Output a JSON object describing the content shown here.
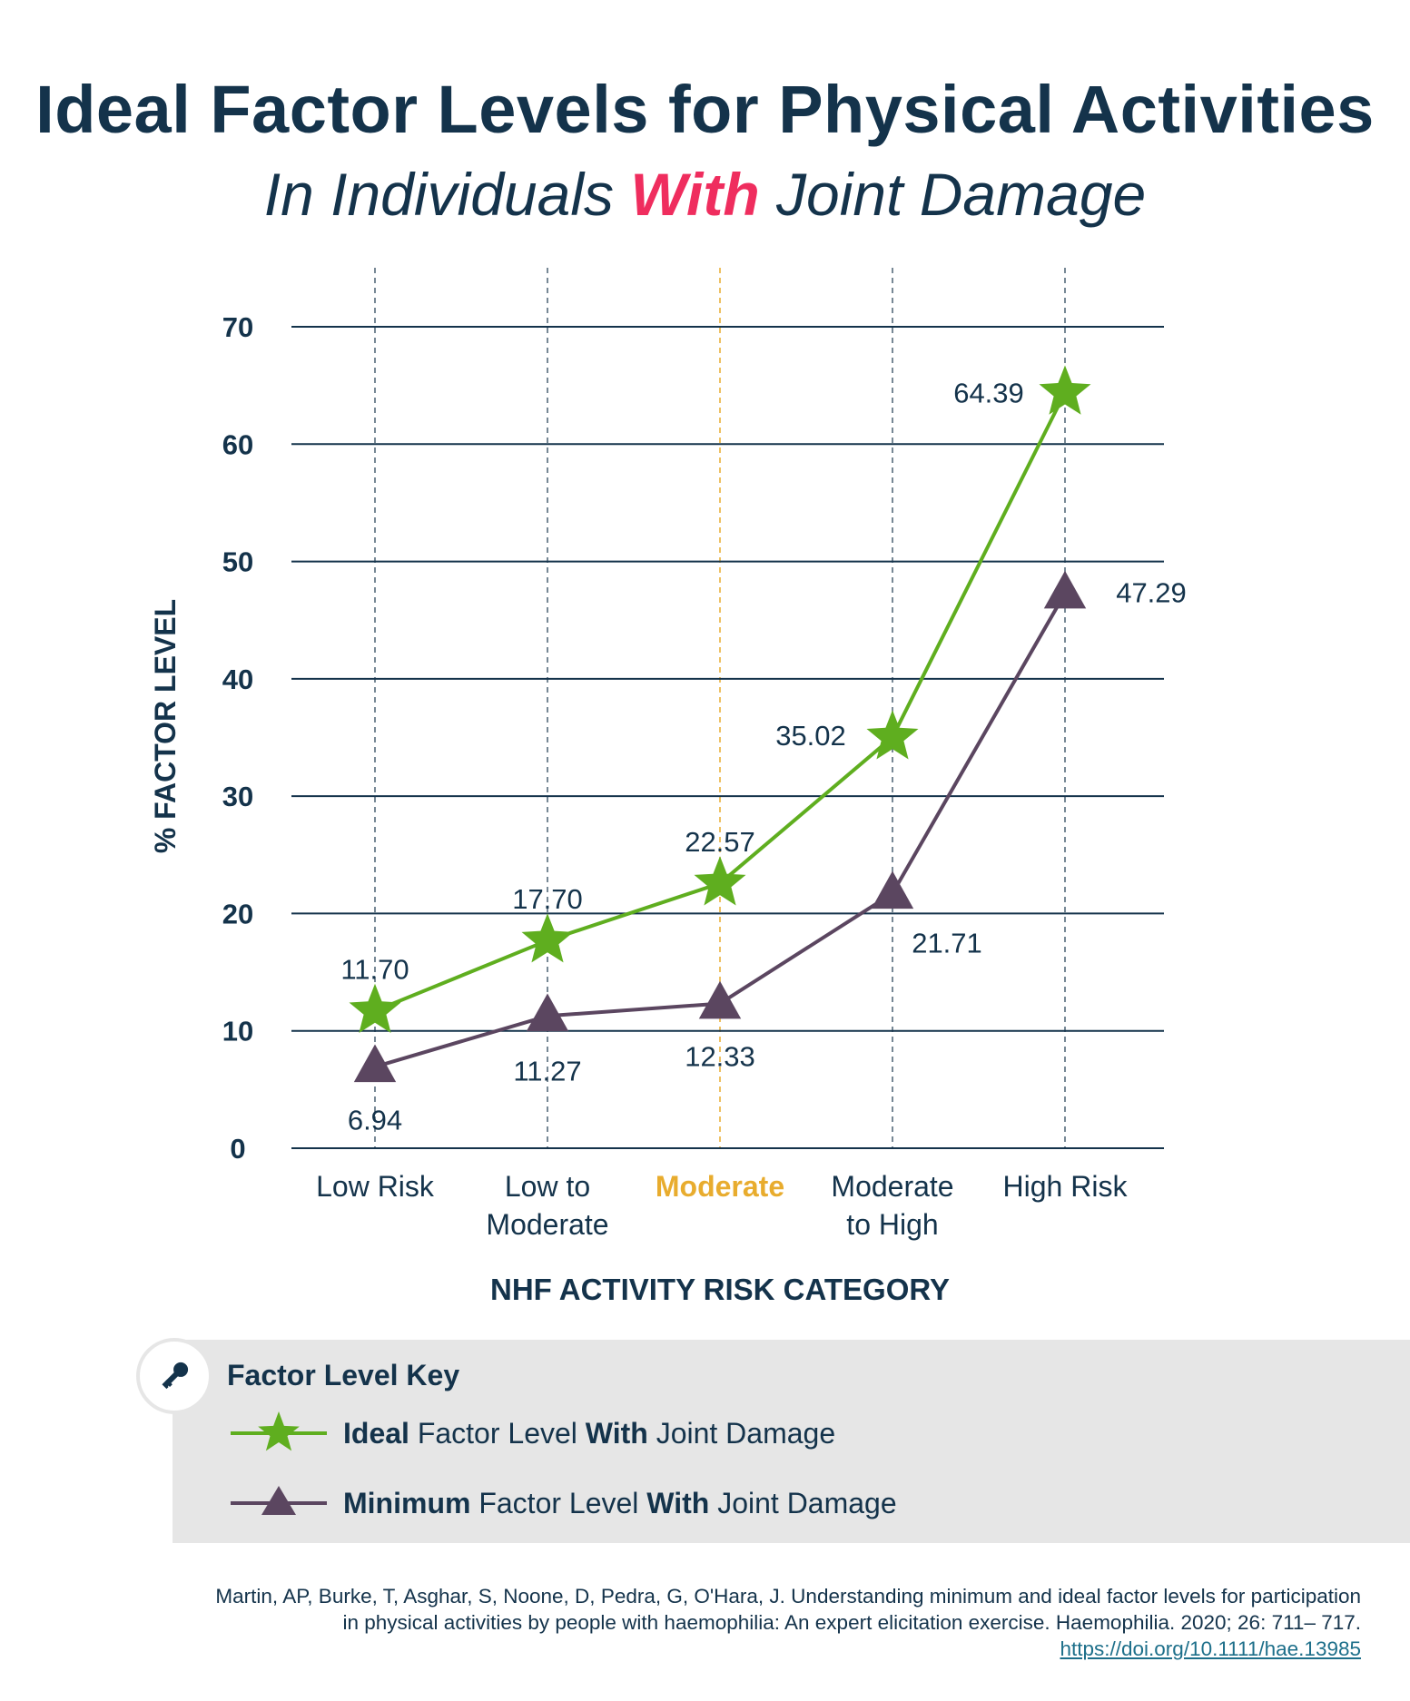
{
  "header": {
    "title": "Ideal Factor Levels for Physical Activities",
    "subtitle_pre": "In Individuals ",
    "subtitle_highlight": "With",
    "subtitle_post": " Joint Damage"
  },
  "chart_data": {
    "type": "line",
    "categories": [
      [
        "Low Risk"
      ],
      [
        "Low to",
        "Moderate"
      ],
      [
        "Moderate"
      ],
      [
        "Moderate",
        "to High"
      ],
      [
        "High Risk"
      ]
    ],
    "highlight_category_index": 2,
    "xlabel": "NHF ACTIVITY RISK CATEGORY",
    "ylabel": "% FACTOR LEVEL",
    "ylim": [
      0,
      70
    ],
    "yticks": [
      0,
      10,
      20,
      30,
      40,
      50,
      60,
      70
    ],
    "grid": true,
    "series": [
      {
        "values": [
          11.7,
          17.7,
          22.57,
          35.02,
          64.39
        ],
        "labels": [
          "11.70",
          "17.70",
          "22.57",
          "35.02",
          "64.39"
        ],
        "marker": "star",
        "color": "#5fae1f"
      },
      {
        "values": [
          6.94,
          11.27,
          12.33,
          21.71,
          47.29
        ],
        "labels": [
          "6.94",
          "11.27",
          "12.33",
          "21.71",
          "47.29"
        ],
        "marker": "triangle",
        "color": "#5b4660"
      }
    ],
    "colors": {
      "axis_text": "#14334b",
      "highlight": "#e8ac2e",
      "gridline": "#14334b",
      "dashed": "#4a6072"
    }
  },
  "legend": {
    "title": "Factor Level Key",
    "icon": "key-icon",
    "items": [
      {
        "bold1": "Ideal",
        "mid": " Factor Level ",
        "bold2": "With",
        "post": " Joint Damage",
        "marker": "star",
        "color": "#5fae1f"
      },
      {
        "bold1": "Minimum",
        "mid": " Factor Level ",
        "bold2": "With",
        "post": " Joint Damage",
        "marker": "triangle",
        "color": "#5b4660"
      }
    ]
  },
  "citation": {
    "line1": "Martin, AP, Burke, T, Asghar, S, Noone, D, Pedra, G, O'Hara, J. Understanding minimum and ideal factor levels for participation",
    "line2": "in physical activities by people with haemophilia: An expert elicitation exercise. Haemophilia. 2020; 26: 711– 717.",
    "link": "https://doi.org/10.1111/hae.13985"
  }
}
